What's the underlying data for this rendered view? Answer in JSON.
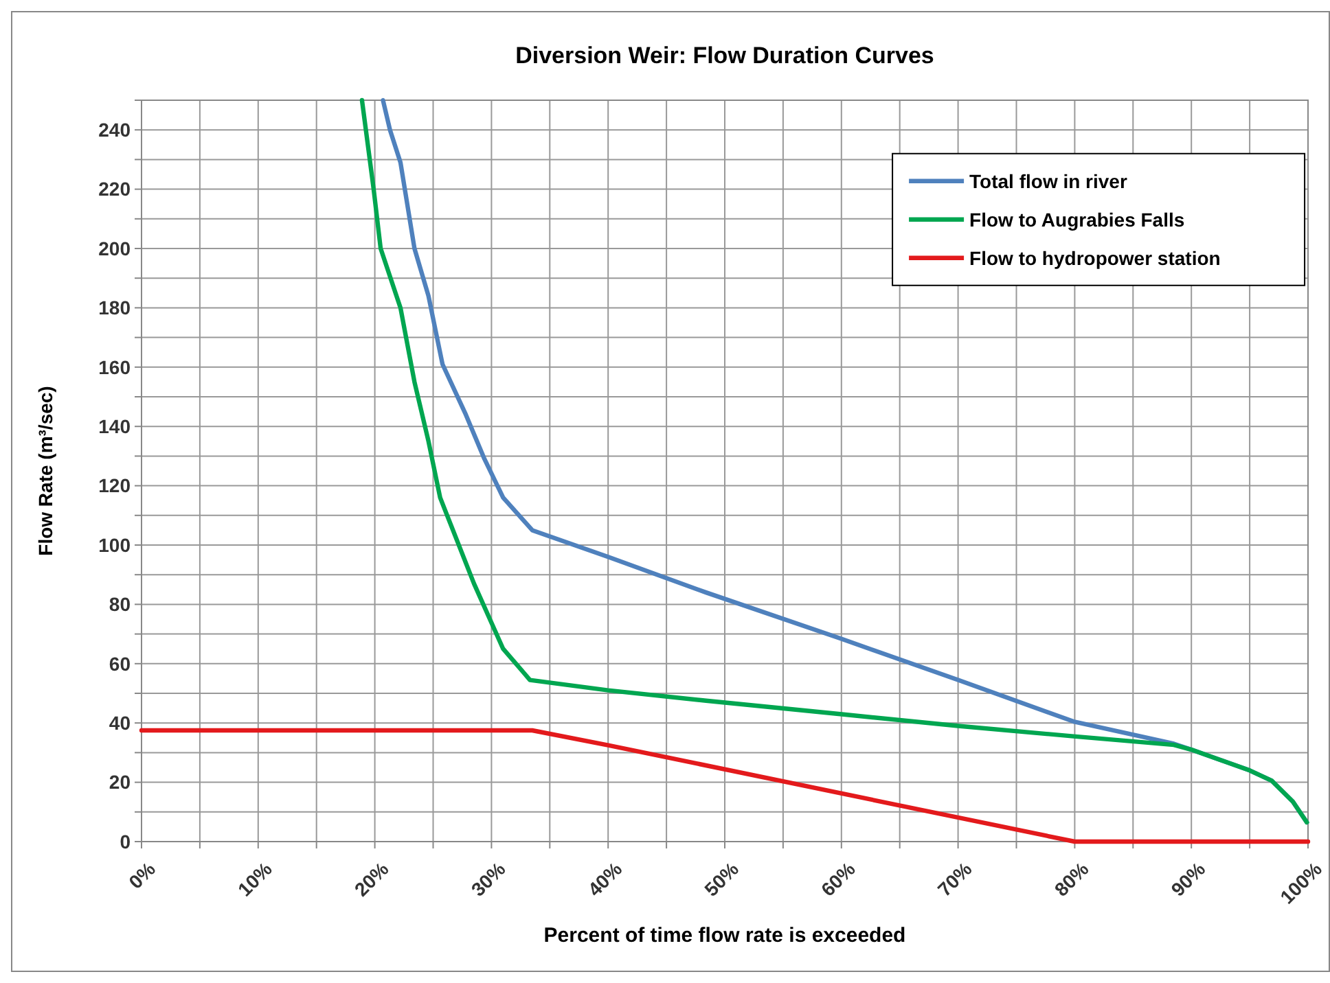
{
  "chart_data": {
    "type": "line",
    "title": "Diversion Weir: Flow Duration Curves",
    "xlabel": "Percent of time flow rate is exceeded",
    "ylabel": "Flow Rate (m³/sec)",
    "xlim": [
      0,
      100
    ],
    "ylim": [
      0,
      250
    ],
    "xticks": [
      {
        "value": 0,
        "label": "0%"
      },
      {
        "value": 5,
        "label": null
      },
      {
        "value": 10,
        "label": "10%"
      },
      {
        "value": 15,
        "label": null
      },
      {
        "value": 20,
        "label": "20%"
      },
      {
        "value": 25,
        "label": null
      },
      {
        "value": 30,
        "label": "30%"
      },
      {
        "value": 35,
        "label": null
      },
      {
        "value": 40,
        "label": "40%"
      },
      {
        "value": 45,
        "label": null
      },
      {
        "value": 50,
        "label": "50%"
      },
      {
        "value": 55,
        "label": null
      },
      {
        "value": 60,
        "label": "60%"
      },
      {
        "value": 65,
        "label": null
      },
      {
        "value": 70,
        "label": "70%"
      },
      {
        "value": 75,
        "label": null
      },
      {
        "value": 80,
        "label": "80%"
      },
      {
        "value": 85,
        "label": null
      },
      {
        "value": 90,
        "label": "90%"
      },
      {
        "value": 95,
        "label": null
      },
      {
        "value": 100,
        "label": "100%"
      }
    ],
    "yticks": [
      0,
      {
        "value": 10,
        "label": null
      },
      20,
      {
        "value": 30,
        "label": null
      },
      40,
      {
        "value": 50,
        "label": null
      },
      60,
      {
        "value": 70,
        "label": null
      },
      80,
      {
        "value": 90,
        "label": null
      },
      100,
      {
        "value": 110,
        "label": null
      },
      120,
      {
        "value": 130,
        "label": null
      },
      140,
      {
        "value": 150,
        "label": null
      },
      160,
      {
        "value": 170,
        "label": null
      },
      180,
      {
        "value": 190,
        "label": null
      },
      200,
      {
        "value": 210,
        "label": null
      },
      220,
      {
        "value": 230,
        "label": null
      },
      240,
      {
        "value": 250,
        "label": null
      }
    ],
    "grid": true,
    "legend": "top right",
    "marker": "none",
    "line_style": "solid",
    "series": [
      {
        "name": "Total flow in river",
        "color": "#4f81bd",
        "x": [
          20.7,
          21.3,
          22.2,
          23.4,
          24.6,
          25.8,
          27.8,
          29.4,
          31,
          33.5,
          40,
          48.4,
          59.9,
          70,
          79.9,
          88.5,
          90,
          95,
          96.9,
          98.7,
          99.9
        ],
        "values": [
          250,
          240,
          229,
          200,
          184,
          161,
          144,
          129,
          116,
          105,
          96,
          84,
          68.5,
          54.5,
          40.5,
          33,
          31,
          24,
          20.5,
          13.5,
          6.5
        ]
      },
      {
        "name": "Flow to Augrabies Falls",
        "color": "#00a650",
        "x": [
          18.9,
          19.9,
          20.5,
          22.2,
          23.4,
          24.6,
          25.6,
          26.2,
          28.5,
          31,
          33.3,
          40,
          48.4,
          59.9,
          70,
          79.9,
          88.5,
          90,
          95,
          96.9,
          98.7,
          99.9
        ],
        "values": [
          250,
          220,
          200,
          180,
          155,
          135,
          116,
          110,
          87,
          65,
          54.5,
          51,
          47.5,
          43,
          39,
          35.5,
          32.6,
          31,
          24,
          20.5,
          13.5,
          6.5
        ]
      },
      {
        "name": "Flow to hydropower station",
        "color": "#e31a1c",
        "x": [
          0,
          33.5,
          40,
          80,
          100
        ],
        "values": [
          37.5,
          37.5,
          32.5,
          0,
          0
        ]
      }
    ]
  }
}
